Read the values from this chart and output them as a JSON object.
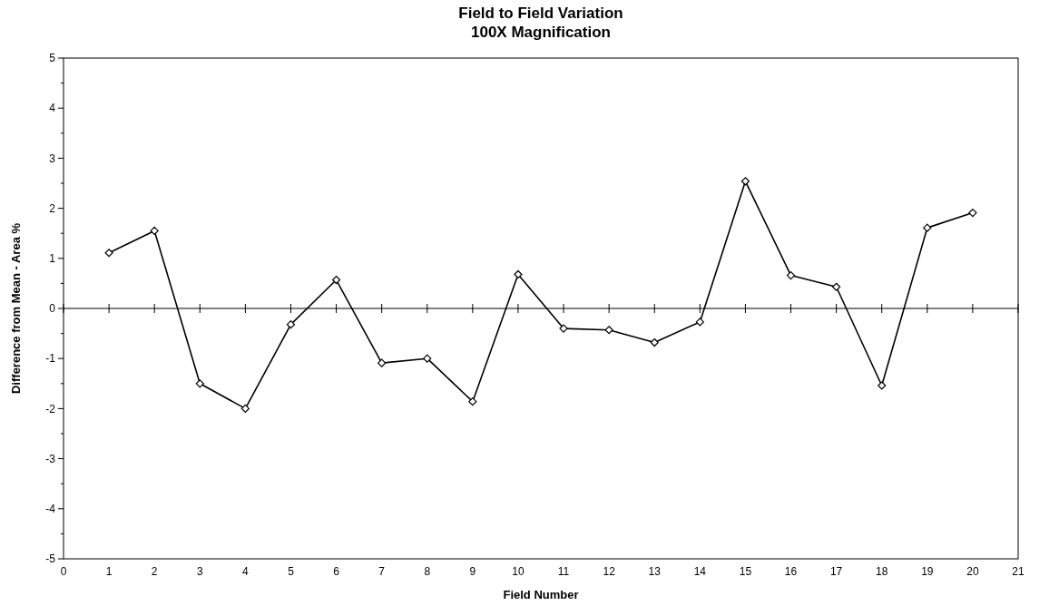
{
  "chart_data": {
    "type": "line",
    "title": "Field to Field Variation",
    "subtitle": "100X Magnification",
    "xlabel": "Field Number",
    "ylabel": "Difference from Mean - Area %",
    "x": [
      1,
      2,
      3,
      4,
      5,
      6,
      7,
      8,
      9,
      10,
      11,
      12,
      13,
      14,
      15,
      16,
      17,
      18,
      19,
      20
    ],
    "series": [
      {
        "color": "#000000",
        "values": [
          1.11,
          1.55,
          -1.5,
          -2.0,
          -0.32,
          0.57,
          -1.09,
          -1.0,
          -1.86,
          0.68,
          -0.4,
          -0.43,
          -0.68,
          -0.27,
          2.54,
          0.66,
          0.43,
          -1.54,
          1.61,
          1.91
        ]
      }
    ],
    "xlim": [
      0,
      21
    ],
    "xticks": [
      0,
      1,
      2,
      3,
      4,
      5,
      6,
      7,
      8,
      9,
      10,
      11,
      12,
      13,
      14,
      15,
      16,
      17,
      18,
      19,
      20,
      21
    ],
    "ylim": [
      -5,
      5
    ],
    "yticks": [
      -5,
      {
        "value": -4.5,
        "label": null
      },
      -4,
      {
        "value": -3.5,
        "label": null
      },
      -3,
      {
        "value": -2.5,
        "label": null
      },
      -2,
      {
        "value": -1.5,
        "label": null
      },
      -1,
      {
        "value": -0.5,
        "label": null
      },
      0,
      {
        "value": 0.5,
        "label": null
      },
      1,
      {
        "value": 1.5,
        "label": null
      },
      2,
      {
        "value": 2.5,
        "label": null
      },
      3,
      {
        "value": 3.5,
        "label": null
      },
      4,
      {
        "value": 4.5,
        "label": null
      },
      5
    ],
    "marker": "diamond",
    "line_style": "solid"
  }
}
